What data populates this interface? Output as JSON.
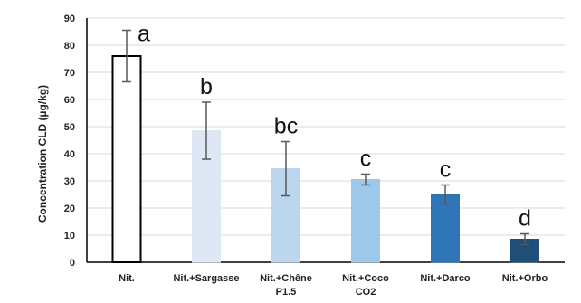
{
  "chart_data": {
    "type": "bar",
    "title": "",
    "xlabel": "",
    "ylabel": "Concentration CLD (µg/kg)",
    "ylim": [
      0,
      90
    ],
    "yticks": [
      0,
      10,
      20,
      30,
      40,
      50,
      60,
      70,
      80,
      90
    ],
    "grid": "horizontal",
    "categories": [
      {
        "lines": [
          "Nit."
        ]
      },
      {
        "lines": [
          "Nit.+Sargasse"
        ]
      },
      {
        "lines": [
          "Nit.+Chêne",
          "P1.5"
        ]
      },
      {
        "lines": [
          "Nit.+Coco",
          "CO2"
        ]
      },
      {
        "lines": [
          "Nit.+Darco"
        ]
      },
      {
        "lines": [
          "Nit.+Orbo"
        ]
      }
    ],
    "values": [
      76,
      48.5,
      34.5,
      30.5,
      25,
      8.5
    ],
    "errors": [
      9.5,
      10.5,
      10,
      2,
      3.5,
      2
    ],
    "significance": [
      "a",
      "b",
      "bc",
      "c",
      "c",
      "d"
    ],
    "colors": [
      "#ffffff",
      "#dde8f4",
      "#bcd6ee",
      "#9ec8ea",
      "#2e75b6",
      "#1f4e79"
    ],
    "edge_colors": [
      "#000000",
      "#dde8f4",
      "#bcd6ee",
      "#9ec8ea",
      "#2e75b6",
      "#1f4e79"
    ]
  }
}
